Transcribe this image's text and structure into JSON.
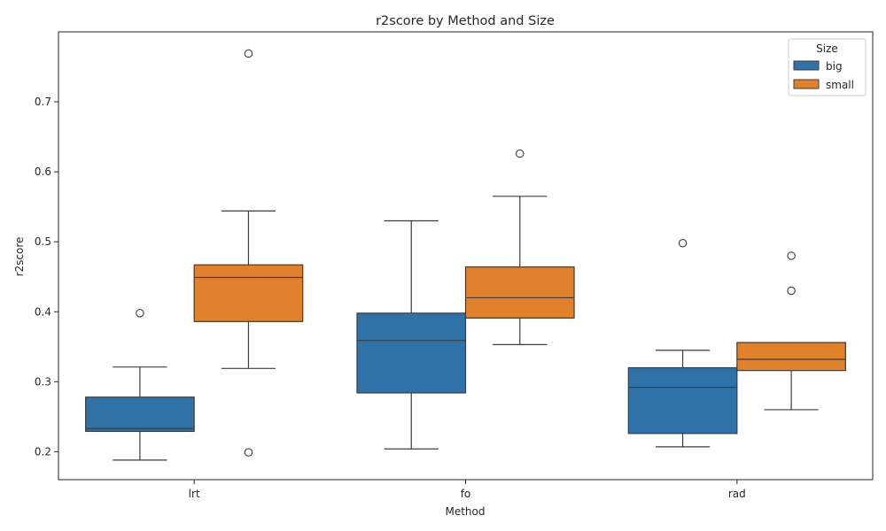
{
  "chart_data": {
    "type": "box",
    "title": "r2score by Method and Size",
    "xlabel": "Method",
    "ylabel": "r2score",
    "categories": [
      "lrt",
      "fo",
      "rad"
    ],
    "ylim": [
      0.16,
      0.8
    ],
    "yticks": [
      0.2,
      0.3,
      0.4,
      0.5,
      0.6,
      0.7
    ],
    "grid": false,
    "legend": {
      "title": "Size",
      "placement": "top-right"
    },
    "series": [
      {
        "name": "big",
        "color": "#2f72a8",
        "boxes": [
          {
            "whislo": 0.188,
            "q1": 0.229,
            "med": 0.233,
            "q3": 0.278,
            "whishi": 0.321,
            "fliers": [
              0.398
            ]
          },
          {
            "whislo": 0.204,
            "q1": 0.284,
            "med": 0.359,
            "q3": 0.398,
            "whishi": 0.53,
            "fliers": []
          },
          {
            "whislo": 0.207,
            "q1": 0.226,
            "med": 0.292,
            "q3": 0.32,
            "whishi": 0.345,
            "fliers": [
              0.498
            ]
          }
        ]
      },
      {
        "name": "small",
        "color": "#e1812c",
        "boxes": [
          {
            "whislo": 0.319,
            "q1": 0.386,
            "med": 0.449,
            "q3": 0.467,
            "whishi": 0.544,
            "fliers": [
              0.769,
              0.199
            ]
          },
          {
            "whislo": 0.353,
            "q1": 0.391,
            "med": 0.42,
            "q3": 0.464,
            "whishi": 0.565,
            "fliers": [
              0.626
            ]
          },
          {
            "whislo": 0.26,
            "q1": 0.316,
            "med": 0.332,
            "q3": 0.356,
            "whishi": 0.356,
            "fliers": [
              0.48,
              0.43
            ]
          }
        ]
      }
    ]
  }
}
